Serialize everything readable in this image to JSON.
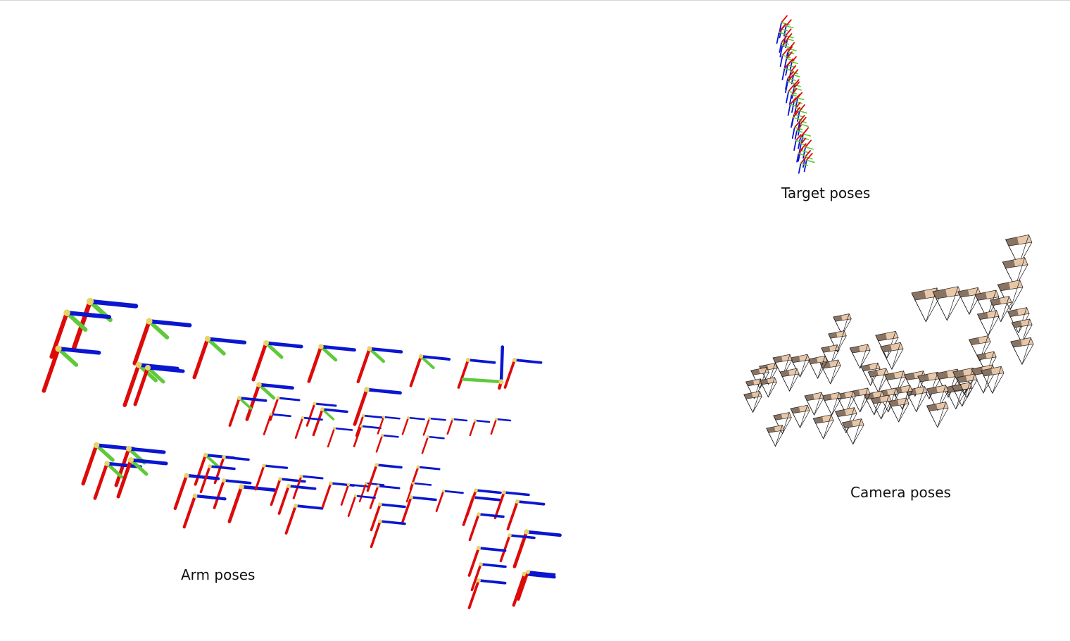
{
  "labels": {
    "target": "Target poses",
    "camera": "Camera poses",
    "arm": "Arm poses"
  },
  "colors": {
    "x_axis": "#dd0a0a",
    "y_axis": "#5fc93a",
    "z_axis": "#0a16d0",
    "origin": "#e6d46a",
    "frustum_line": "#1a1a1a",
    "frustum_image_dark": "#3a3028",
    "frustum_image_light": "#e8c6a6",
    "background": "#ffffff"
  },
  "icons": {
    "arm_pose": "axes-triad-icon",
    "target_pose": "axes-triad-icon",
    "camera_pose": "camera-frustum-icon"
  }
}
